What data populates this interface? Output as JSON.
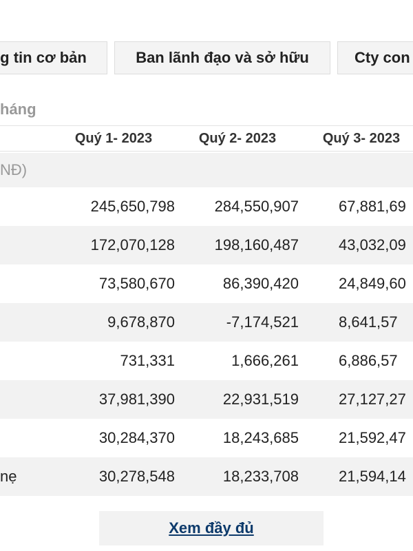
{
  "tabs": [
    {
      "label": "g tin cơ bản"
    },
    {
      "label": "Ban lãnh đạo và sở hữu"
    },
    {
      "label": "Cty con"
    }
  ],
  "section": {
    "label": "háng"
  },
  "table": {
    "headers": [
      "Quý 1- 2023",
      "Quý 2- 2023",
      "Quý 3- 2023"
    ],
    "unit_label": "NĐ)",
    "rows": [
      {
        "label": "",
        "values": [
          "245,650,798",
          "284,550,907",
          "67,881,69"
        ]
      },
      {
        "label": "",
        "values": [
          "172,070,128",
          "198,160,487",
          "43,032,09"
        ]
      },
      {
        "label": "",
        "values": [
          "73,580,670",
          "86,390,420",
          "24,849,60"
        ]
      },
      {
        "label": "",
        "values": [
          "9,678,870",
          "-7,174,521",
          "8,641,57"
        ]
      },
      {
        "label": "",
        "values": [
          "731,331",
          "1,666,261",
          "6,886,57"
        ]
      },
      {
        "label": "",
        "values": [
          "37,981,390",
          "22,931,519",
          "27,127,27"
        ]
      },
      {
        "label": "",
        "values": [
          "30,284,370",
          "18,243,685",
          "21,592,47"
        ]
      },
      {
        "label": "nẹ",
        "values": [
          "30,278,548",
          "18,233,708",
          "21,594,14"
        ]
      }
    ]
  },
  "more_button": {
    "label": "Xem đầy đủ"
  }
}
